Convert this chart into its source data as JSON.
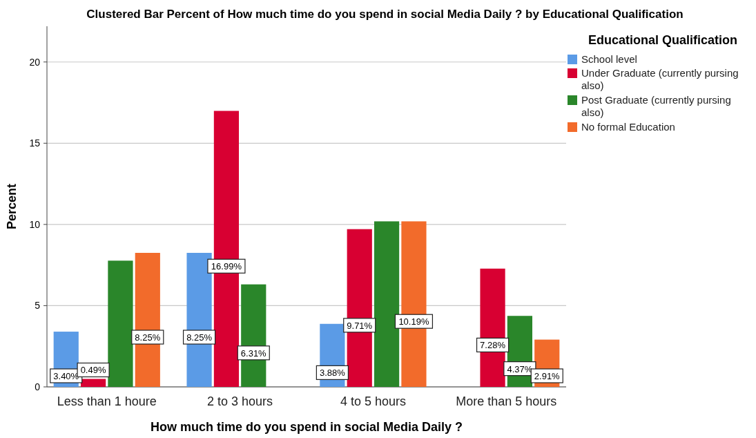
{
  "chart_data": {
    "type": "bar",
    "title": "Clustered Bar Percent of How much time do you spend in social Media Daily ? by Educational Qualification",
    "xlabel": "How much time do you spend in social Media Daily ?",
    "ylabel": "Percent",
    "legend_title": "Educational Qualification",
    "categories": [
      "Less than 1 houre",
      "2 to 3 hours",
      "4 to 5 hours",
      "More than 5 hours"
    ],
    "series": [
      {
        "name": "School level",
        "color": "#5b9be6",
        "values": [
          3.4,
          8.25,
          3.88,
          null
        ],
        "value_labels": [
          "3.40%",
          "8.25%",
          "3.88%",
          null
        ]
      },
      {
        "name": "Under Graduate (currently pursing also)",
        "color": "#d80032",
        "values": [
          0.49,
          16.99,
          9.71,
          7.28
        ],
        "value_labels": [
          "0.49%",
          "16.99%",
          "9.71%",
          "7.28%"
        ]
      },
      {
        "name": "Post Graduate (currently pursing also)",
        "color": "#2a862a",
        "values": [
          7.77,
          6.31,
          10.19,
          4.37
        ],
        "value_labels": [
          null,
          "6.31%",
          null,
          "4.37%"
        ]
      },
      {
        "name": "No formal Education",
        "color": "#f26b2b",
        "values": [
          8.25,
          null,
          10.19,
          2.91
        ],
        "value_labels": [
          "8.25%",
          null,
          "10.19%",
          "2.91%"
        ]
      }
    ],
    "ylim": [
      0,
      22.2
    ],
    "yticks": [
      0,
      5,
      10,
      15,
      20
    ],
    "grid": "y",
    "legend": "top right"
  }
}
